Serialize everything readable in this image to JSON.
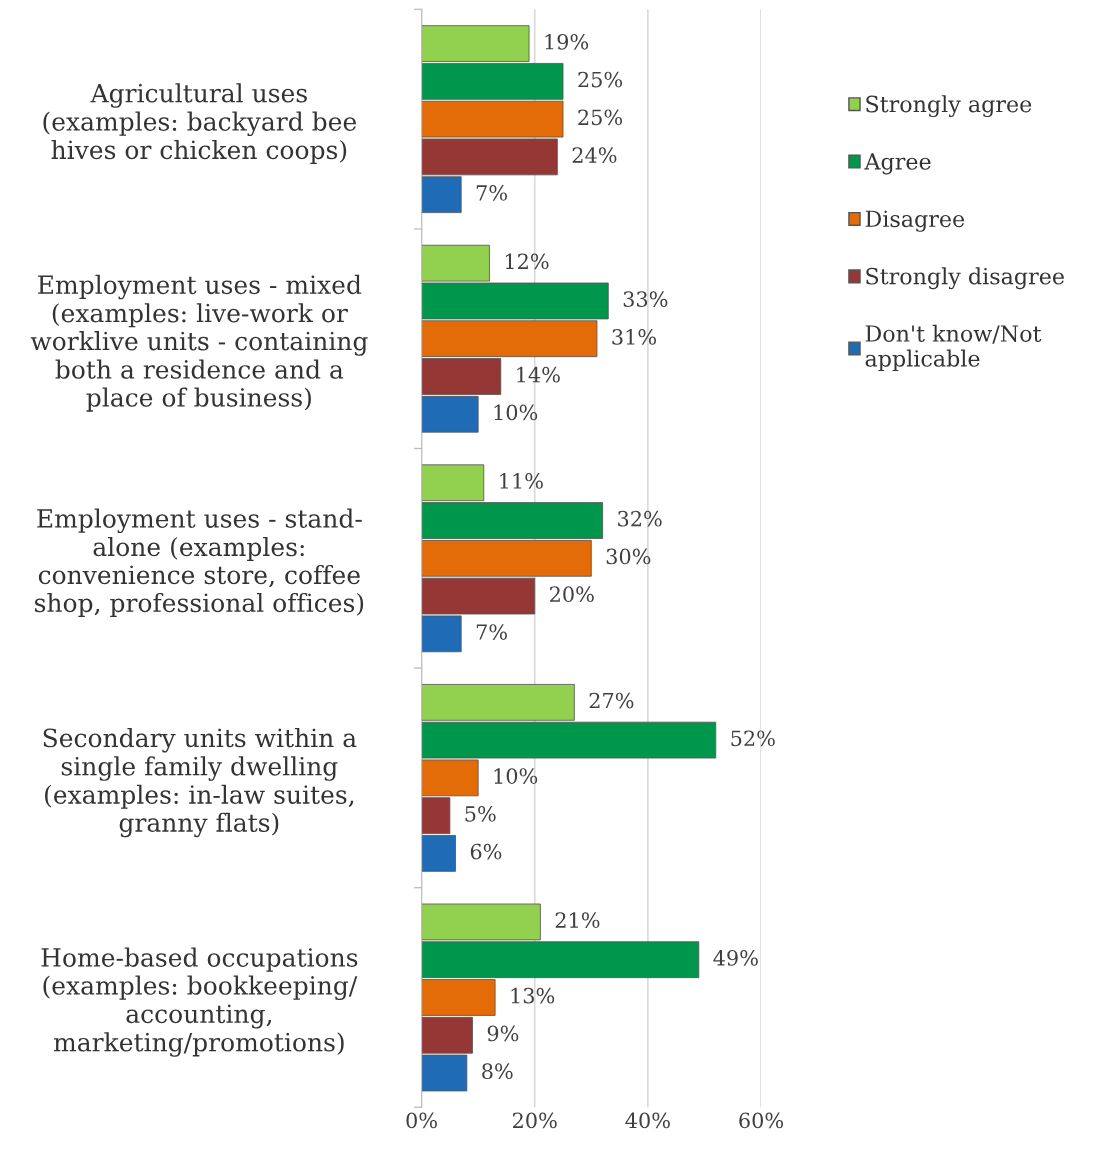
{
  "chart_data": {
    "type": "bar",
    "orientation": "horizontal",
    "categories": [
      "Agricultural uses\n(examples: backyard bee\nhives or chicken coops)",
      "Employment uses - mixed\n(examples: live-work or\nworklive units - containing\nboth a residence and a\nplace of business)",
      "Employment uses - stand-\nalone (examples:\nconvenience store, coffee\nshop, professional offices)",
      "Secondary units within a\nsingle family dwelling\n(examples: in-law suites,\ngranny flats)",
      "Home-based occupations\n(examples: bookkeeping/\naccounting,\nmarketing/promotions)"
    ],
    "series": [
      {
        "name": "Strongly agree",
        "color": "#92d050",
        "values": [
          19,
          12,
          11,
          27,
          21
        ],
        "value_labels": [
          "19%",
          "12%",
          "11%",
          "27%",
          "21%"
        ]
      },
      {
        "name": "Agree",
        "color": "#00964b",
        "values": [
          25,
          33,
          32,
          52,
          49
        ],
        "value_labels": [
          "25%",
          "33%",
          "32%",
          "52%",
          "49%"
        ]
      },
      {
        "name": "Disagree",
        "color": "#e36c09",
        "values": [
          25,
          31,
          30,
          10,
          13
        ],
        "value_labels": [
          "25%",
          "31%",
          "30%",
          "10%",
          "13%"
        ]
      },
      {
        "name": "Strongly disagree",
        "color": "#953735",
        "values": [
          24,
          14,
          20,
          5,
          9
        ],
        "value_labels": [
          "24%",
          "14%",
          "20%",
          "5%",
          "9%"
        ]
      },
      {
        "name": "Don't know/Not\napplicable",
        "color": "#1f6bb5",
        "values": [
          7,
          10,
          7,
          6,
          8
        ],
        "value_labels": [
          "7%",
          "10%",
          "7%",
          "6%",
          "8%"
        ]
      }
    ],
    "xlim": [
      0,
      60
    ],
    "xticks": [
      {
        "value": 0,
        "label": "0%"
      },
      {
        "value": 20,
        "label": "20%"
      },
      {
        "value": 40,
        "label": "40%"
      },
      {
        "value": 60,
        "label": "60%"
      }
    ],
    "grid": "x",
    "legend": "right"
  }
}
